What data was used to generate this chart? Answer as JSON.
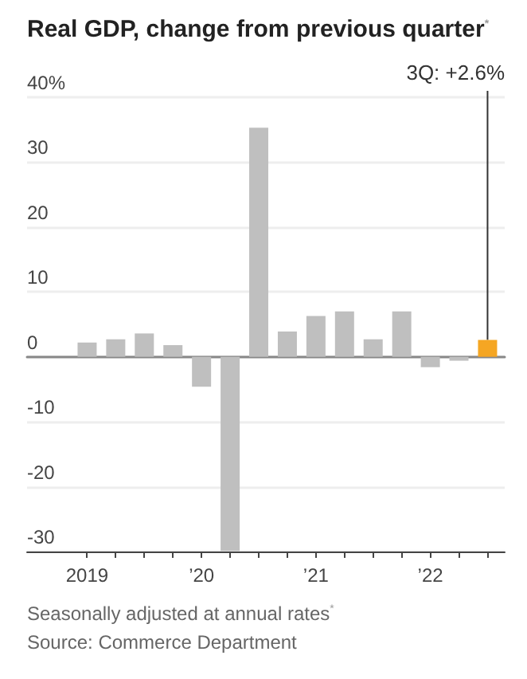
{
  "chart_data": {
    "type": "bar",
    "title": "Real GDP, change from previous quarter$^{*}$",
    "categories": [
      "2019",
      null,
      null,
      null,
      "’20",
      null,
      null,
      null,
      "’21",
      null,
      null,
      null,
      "’22",
      null,
      null
    ],
    "values": [
      2.2,
      2.7,
      3.6,
      1.8,
      -4.6,
      -29.9,
      35.3,
      3.9,
      6.3,
      7.0,
      2.7,
      7.0,
      -1.6,
      -0.6,
      2.6
    ],
    "colors": [
      "#bfbfbf",
      "#bfbfbf",
      "#bfbfbf",
      "#bfbfbf",
      "#bfbfbf",
      "#bfbfbf",
      "#bfbfbf",
      "#bfbfbf",
      "#bfbfbf",
      "#bfbfbf",
      "#bfbfbf",
      "#bfbfbf",
      "#bfbfbf",
      "#bfbfbf",
      "#f5a623"
    ],
    "ylim": [
      -30,
      40
    ],
    "yticks": [
      -30,
      -20,
      -10,
      0,
      10,
      20,
      {
        "value": 40,
        "label": "40%"
      },
      30
    ],
    "grid": "y",
    "annotations": [
      "3Q: +2.6%",
      "Seasonally adjusted at annual rates$^{*}$",
      "Source: Commerce Department"
    ]
  }
}
